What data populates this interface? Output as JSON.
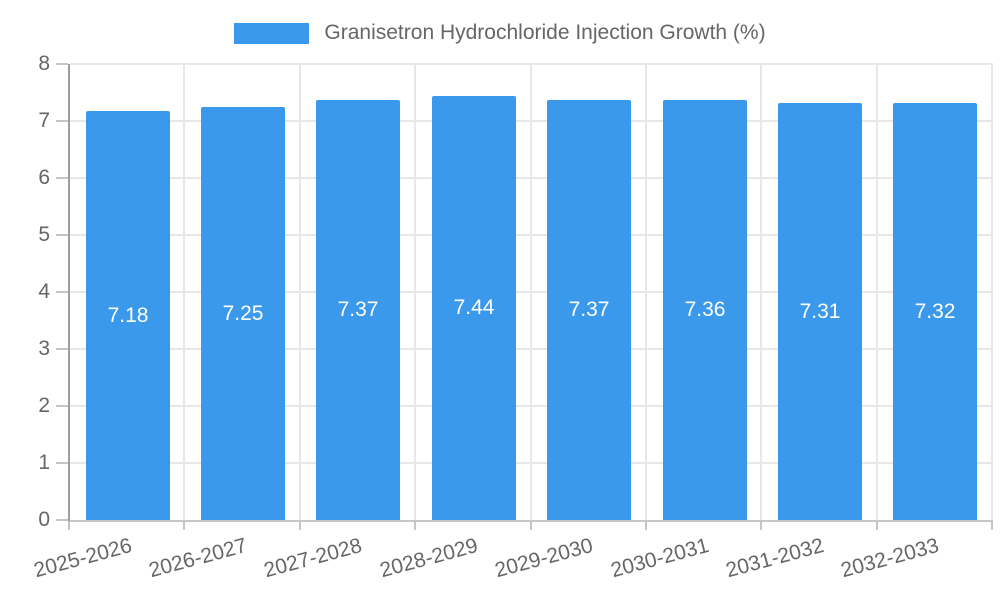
{
  "chart_data": {
    "type": "bar",
    "title": "Granisetron Hydrochloride Injection Growth (%)",
    "categories": [
      "2025-2026",
      "2026-2027",
      "2027-2028",
      "2028-2029",
      "2029-2030",
      "2030-2031",
      "2031-2032",
      "2032-2033"
    ],
    "series": [
      {
        "name": "Granisetron Hydrochloride Injection Growth (%)",
        "values": [
          7.18,
          7.25,
          7.37,
          7.44,
          7.37,
          7.36,
          7.31,
          7.32
        ],
        "value_labels": [
          "7.18",
          "7.25",
          "7.37",
          "7.44",
          "7.37",
          "7.36",
          "7.31",
          "7.32"
        ]
      }
    ],
    "xlabel": "",
    "ylabel": "",
    "ylim": [
      0,
      8
    ],
    "ytick_step": 1,
    "ytick_labels": [
      "0",
      "1",
      "2",
      "3",
      "4",
      "5",
      "6",
      "7",
      "8"
    ],
    "grid": true,
    "legend_position": "top",
    "value_label_position": "inside-middle",
    "value_decimals": 2
  },
  "colors": {
    "bar": "#3b99ec",
    "label_text": "#666666",
    "value_text": "#ffffff",
    "grid": "#e7e7e7",
    "axis_y": "#9e9e9e",
    "axis_x": "#c6c6c6",
    "tick": "#c4c4c4",
    "background": "#ffffff"
  }
}
